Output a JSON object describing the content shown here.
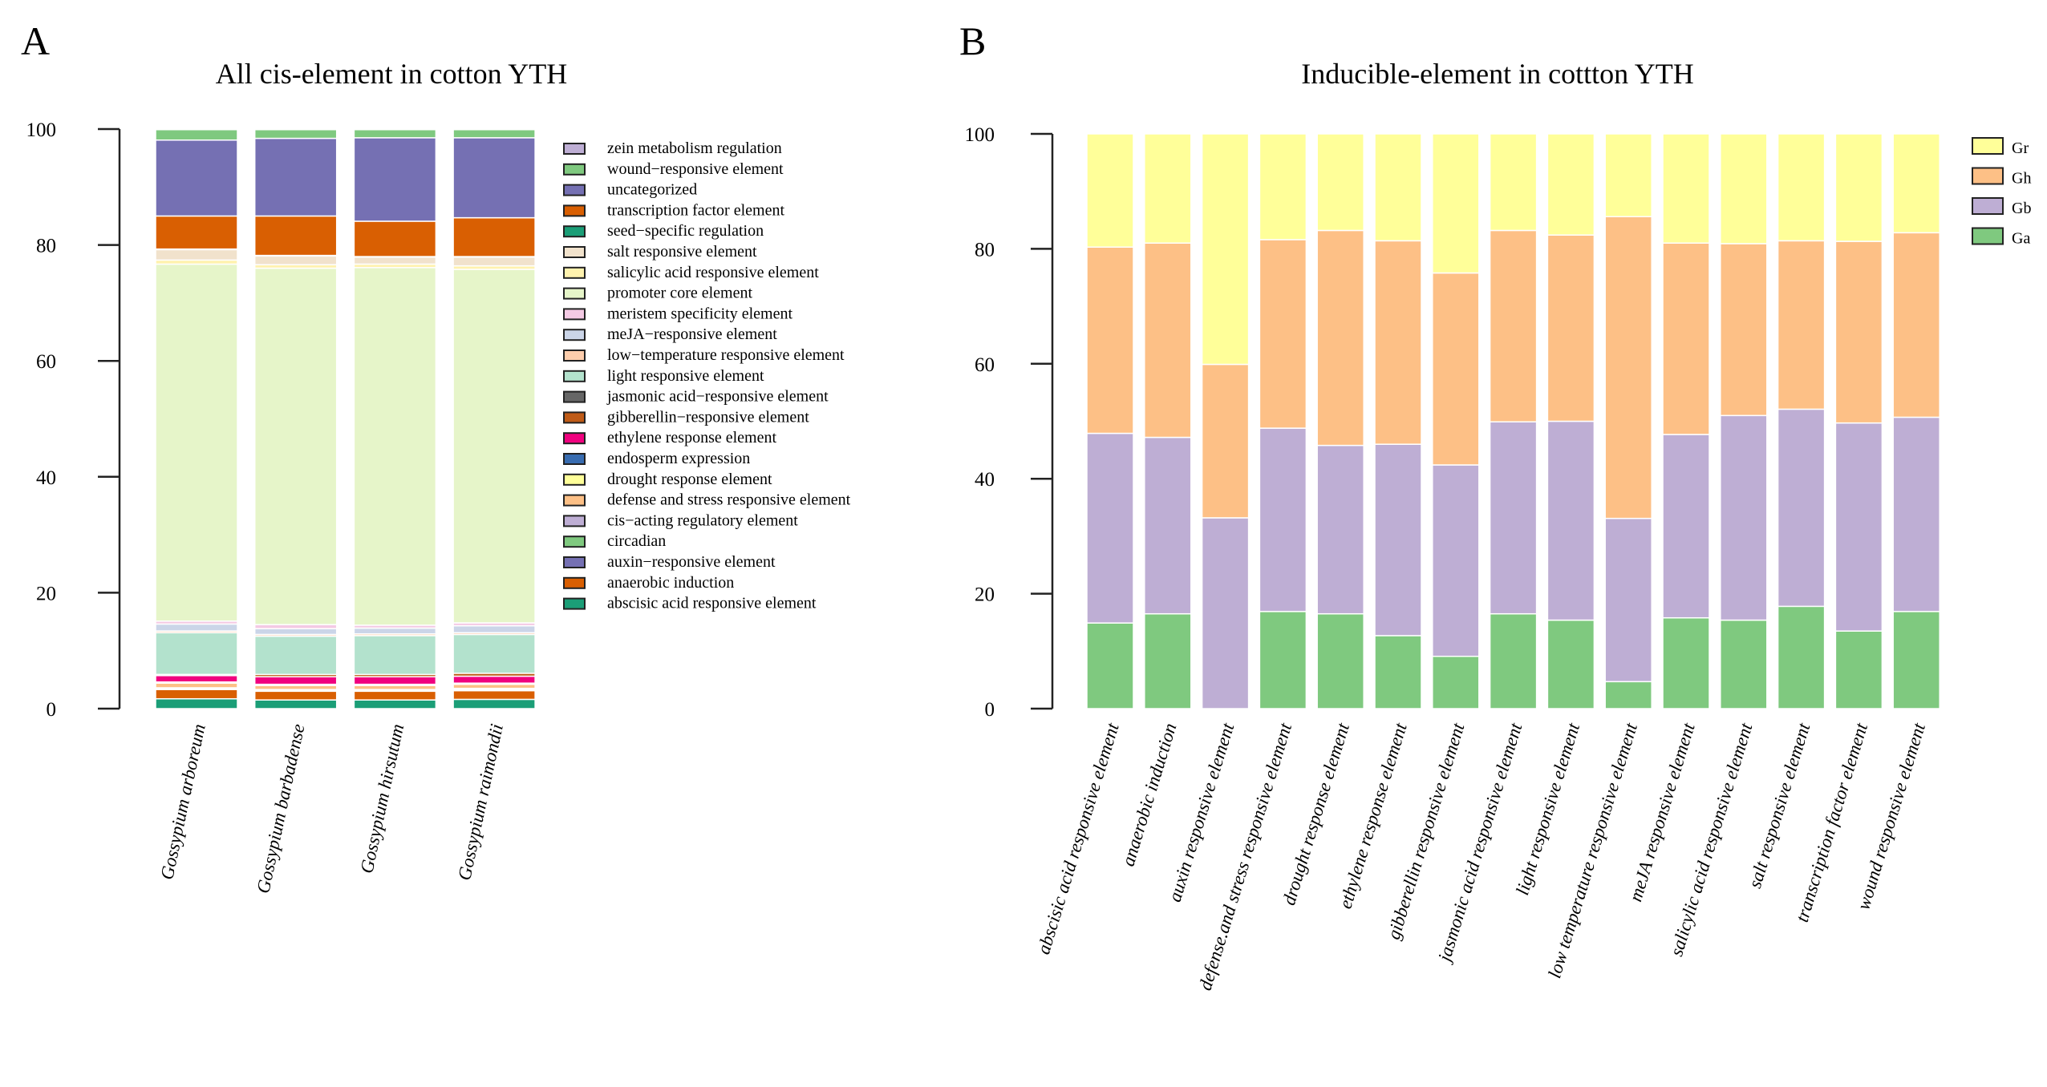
{
  "chart_data": [
    {
      "type": "bar",
      "stacked": true,
      "panel_label": "A",
      "title": "All cis-element in cotton YTH",
      "xlabel": "",
      "ylabel": "",
      "ylim": [
        0,
        100
      ],
      "yticks": [
        0,
        20,
        40,
        60,
        80,
        100
      ],
      "legend_placement": "right",
      "categories": [
        "Gossypium arboreum",
        "Gossypium barbadense",
        "Gossypium hirsutum",
        "Gossypium raimondii"
      ],
      "series": [
        {
          "name": "abscisic acid responsive element",
          "color": "#1b9e77",
          "values": [
            1.7,
            1.5,
            1.5,
            1.6
          ]
        },
        {
          "name": "anaerobic induction",
          "color": "#d95f02",
          "values": [
            1.6,
            1.5,
            1.5,
            1.5
          ]
        },
        {
          "name": "auxin−responsive element",
          "color": "#7570b3",
          "values": [
            0.1,
            0.2,
            0.1,
            0.2
          ]
        },
        {
          "name": "circadian",
          "color": "#7fc97f",
          "values": [
            0.2,
            0.1,
            0.2,
            0.2
          ]
        },
        {
          "name": "cis−acting regulatory element",
          "color": "#beaed4",
          "values": [
            0,
            0,
            0,
            0
          ]
        },
        {
          "name": "defense and stress responsive element",
          "color": "#fdc086",
          "values": [
            0.8,
            0.7,
            0.7,
            0.7
          ]
        },
        {
          "name": "drought response element",
          "color": "#ffff99",
          "values": [
            0.2,
            0.2,
            0.2,
            0.2
          ]
        },
        {
          "name": "endosperm expression",
          "color": "#386cb0",
          "values": [
            0,
            0,
            0,
            0
          ]
        },
        {
          "name": "ethylene response element",
          "color": "#f0027f",
          "values": [
            1.1,
            1.3,
            1.3,
            1.2
          ]
        },
        {
          "name": "gibberellin−responsive element",
          "color": "#bf5b17",
          "values": [
            0.2,
            0.4,
            0.4,
            0.5
          ]
        },
        {
          "name": "jasmonic acid−responsive element",
          "color": "#666666",
          "values": [
            0,
            0,
            0,
            0
          ]
        },
        {
          "name": "light responsive element",
          "color": "#b3e2cd",
          "values": [
            7.2,
            6.6,
            6.7,
            6.7
          ]
        },
        {
          "name": "low−temperature responsive element",
          "color": "#fdcdac",
          "values": [
            0.3,
            0.3,
            0.3,
            0.3
          ]
        },
        {
          "name": "meJA−responsive element",
          "color": "#cbd5e8",
          "values": [
            1.2,
            1.0,
            1.0,
            1.2
          ]
        },
        {
          "name": "meristem specificity element",
          "color": "#f4cae4",
          "values": [
            0.5,
            0.7,
            0.5,
            0.5
          ]
        },
        {
          "name": "promoter core element",
          "color": "#e6f5c9",
          "values": [
            61.6,
            61.5,
            61.7,
            61.0
          ]
        },
        {
          "name": "salicylic acid responsive element",
          "color": "#fff2ae",
          "values": [
            0.7,
            0.6,
            0.6,
            0.6
          ]
        },
        {
          "name": "salt responsive element",
          "color": "#f1e2cc",
          "values": [
            1.8,
            1.5,
            1.2,
            1.5
          ]
        },
        {
          "name": "seed−specific regulation",
          "color": "#1b9e77",
          "values": [
            0.1,
            0.1,
            0.1,
            0.1
          ]
        },
        {
          "name": "transcription factor element",
          "color": "#d95f02",
          "values": [
            5.7,
            6.8,
            6.1,
            6.7
          ]
        },
        {
          "name": "uncategorized",
          "color": "#7570b3",
          "values": [
            13.1,
            13.4,
            14.4,
            13.8
          ]
        },
        {
          "name": "wound−responsive element",
          "color": "#7fc97f",
          "values": [
            1.8,
            1.5,
            1.4,
            1.4
          ]
        },
        {
          "name": "zein metabolism regulation",
          "color": "#beaed4",
          "values": [
            0.1,
            0.1,
            0.1,
            0.1
          ]
        }
      ]
    },
    {
      "type": "bar",
      "stacked": true,
      "panel_label": "B",
      "title": "Inducible-element in cottton YTH",
      "xlabel": "",
      "ylabel": "",
      "ylim": [
        0,
        100
      ],
      "yticks": [
        0,
        20,
        40,
        60,
        80,
        100
      ],
      "legend_placement": "top-right",
      "categories": [
        "abscisic acid responsive element",
        "anaerobic induction",
        "auxin responsive element",
        "defense.and stress responsive element",
        "drought response element",
        "ethylene response element",
        "gibberellin responsive element",
        "jasmonic acid responsive element",
        "light responsive element",
        "low temperature responsive element",
        "meJA responsive element",
        "salicylic acid responsive element",
        "salt responsive element",
        "transcription factor element",
        "wound responsive element"
      ],
      "series": [
        {
          "name": "Ga",
          "color": "#7fc97f",
          "values": [
            14.9,
            16.5,
            0,
            16.9,
            16.5,
            12.7,
            9.1,
            16.5,
            15.4,
            4.7,
            15.8,
            15.4,
            17.8,
            13.5,
            16.9
          ]
        },
        {
          "name": "Gb",
          "color": "#beaed4",
          "values": [
            33.0,
            30.7,
            33.2,
            31.9,
            29.3,
            33.3,
            33.3,
            33.4,
            34.6,
            28.4,
            31.9,
            35.6,
            34.3,
            36.2,
            33.8
          ]
        },
        {
          "name": "Gh",
          "color": "#fdc086",
          "values": [
            32.4,
            33.8,
            26.7,
            32.8,
            37.4,
            35.4,
            33.4,
            33.3,
            32.4,
            52.5,
            33.3,
            29.9,
            29.3,
            31.6,
            32.1
          ]
        },
        {
          "name": "Gr",
          "color": "#ffff99",
          "values": [
            19.7,
            19.0,
            40.1,
            18.4,
            16.8,
            18.6,
            24.2,
            16.8,
            17.6,
            14.4,
            19.0,
            19.1,
            18.6,
            18.7,
            17.2
          ]
        }
      ]
    }
  ]
}
